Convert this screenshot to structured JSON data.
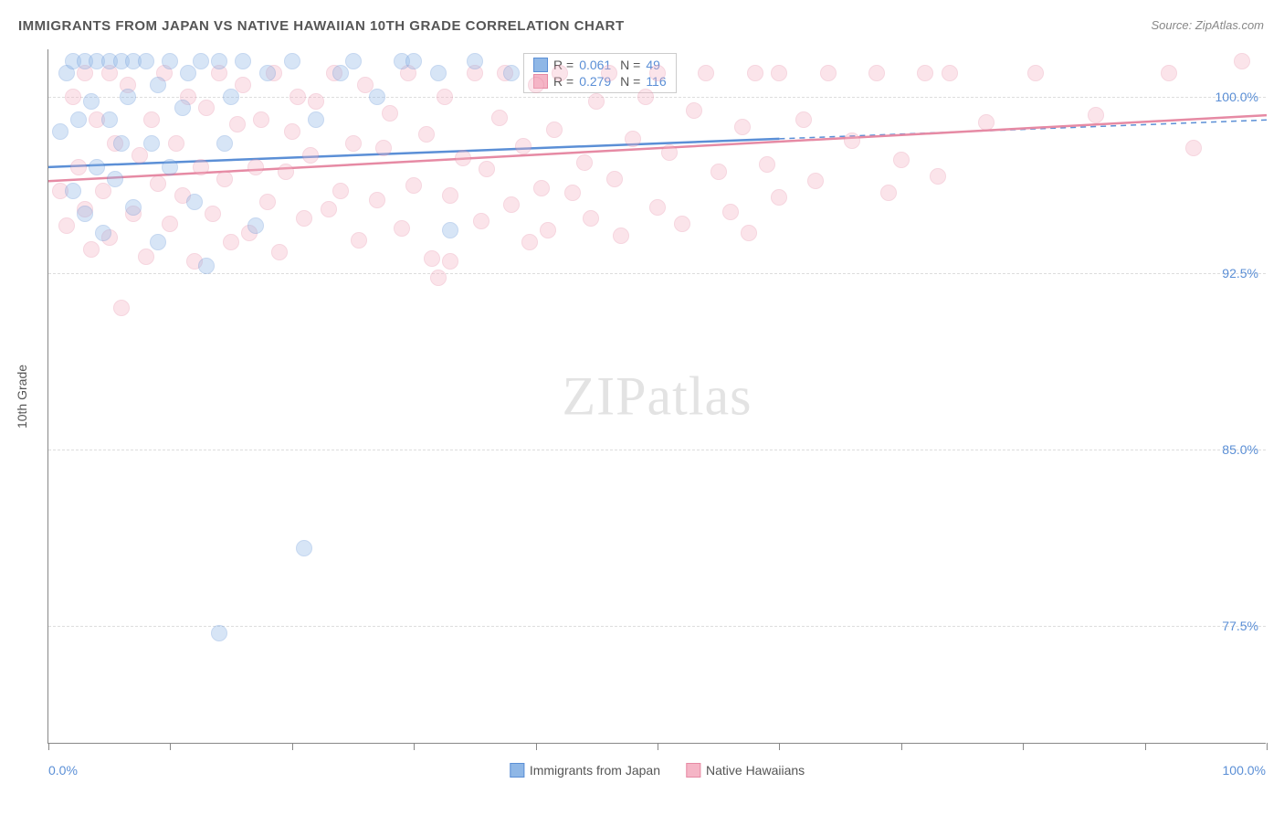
{
  "title": "IMMIGRANTS FROM JAPAN VS NATIVE HAWAIIAN 10TH GRADE CORRELATION CHART",
  "source": "Source: ZipAtlas.com",
  "ylabel": "10th Grade",
  "watermark_a": "ZIP",
  "watermark_b": "atlas",
  "chart": {
    "type": "scatter-with-trendlines",
    "background_color": "#ffffff",
    "grid_color": "#dddddd",
    "axis_color": "#888888",
    "tick_label_color": "#5b8fd6",
    "label_color": "#555555",
    "label_fontsize": 14,
    "title_fontsize": 15,
    "x": {
      "min": 0,
      "max": 100,
      "label_min": "0.0%",
      "label_max": "100.0%",
      "ticks": [
        0,
        10,
        20,
        30,
        40,
        50,
        60,
        70,
        80,
        90,
        100
      ]
    },
    "y": {
      "min": 72.5,
      "max": 102,
      "gridlines": [
        77.5,
        85.0,
        92.5,
        100.0
      ],
      "gridlabels": [
        "77.5%",
        "85.0%",
        "92.5%",
        "100.0%"
      ]
    },
    "marker_radius": 9,
    "marker_opacity": 0.35,
    "series": [
      {
        "name": "Immigrants from Japan",
        "fill": "#8fb7e6",
        "stroke": "#5b8fd6",
        "R": "0.061",
        "N": "49",
        "trend": {
          "y_at_x0": 97.0,
          "y_at_x100": 99.0,
          "solid_until_x": 60
        },
        "points": [
          [
            1,
            98.5
          ],
          [
            1.5,
            101
          ],
          [
            2,
            96
          ],
          [
            2,
            101.5
          ],
          [
            2.5,
            99
          ],
          [
            3,
            101.5
          ],
          [
            3,
            95
          ],
          [
            3.5,
            99.8
          ],
          [
            4,
            101.5
          ],
          [
            4,
            97
          ],
          [
            4.5,
            94.2
          ],
          [
            5,
            101.5
          ],
          [
            5,
            99
          ],
          [
            5.5,
            96.5
          ],
          [
            6,
            101.5
          ],
          [
            6,
            98
          ],
          [
            6.5,
            100
          ],
          [
            7,
            101.5
          ],
          [
            7,
            95.3
          ],
          [
            8,
            101.5
          ],
          [
            8.5,
            98
          ],
          [
            9,
            100.5
          ],
          [
            9,
            93.8
          ],
          [
            10,
            101.5
          ],
          [
            10,
            97
          ],
          [
            11,
            99.5
          ],
          [
            11.5,
            101
          ],
          [
            12,
            95.5
          ],
          [
            12.5,
            101.5
          ],
          [
            13,
            92.8
          ],
          [
            14,
            101.5
          ],
          [
            14.5,
            98
          ],
          [
            15,
            100
          ],
          [
            16,
            101.5
          ],
          [
            17,
            94.5
          ],
          [
            18,
            101
          ],
          [
            20,
            101.5
          ],
          [
            22,
            99
          ],
          [
            24,
            101
          ],
          [
            25,
            101.5
          ],
          [
            27,
            100
          ],
          [
            29,
            101.5
          ],
          [
            30,
            101.5
          ],
          [
            32,
            101
          ],
          [
            33,
            94.3
          ],
          [
            35,
            101.5
          ],
          [
            38,
            101
          ],
          [
            14,
            77.2
          ],
          [
            21,
            80.8
          ]
        ]
      },
      {
        "name": "Native Hawaiians",
        "fill": "#f5b5c6",
        "stroke": "#e68aa4",
        "R": "0.279",
        "N": "116",
        "trend": {
          "y_at_x0": 96.4,
          "y_at_x100": 99.2,
          "solid_until_x": 100
        },
        "points": [
          [
            1,
            96
          ],
          [
            1.5,
            94.5
          ],
          [
            2,
            100
          ],
          [
            2.5,
            97
          ],
          [
            3,
            95.2
          ],
          [
            3,
            101
          ],
          [
            3.5,
            93.5
          ],
          [
            4,
            99
          ],
          [
            4.5,
            96
          ],
          [
            5,
            101
          ],
          [
            5,
            94
          ],
          [
            5.5,
            98
          ],
          [
            6,
            91
          ],
          [
            6.5,
            100.5
          ],
          [
            7,
            95
          ],
          [
            7.5,
            97.5
          ],
          [
            8,
            93.2
          ],
          [
            8.5,
            99
          ],
          [
            9,
            96.3
          ],
          [
            9.5,
            101
          ],
          [
            10,
            94.6
          ],
          [
            10.5,
            98
          ],
          [
            11,
            95.8
          ],
          [
            11.5,
            100
          ],
          [
            12,
            93
          ],
          [
            12.5,
            97
          ],
          [
            13,
            99.5
          ],
          [
            13.5,
            95
          ],
          [
            14,
            101
          ],
          [
            14.5,
            96.5
          ],
          [
            15,
            93.8
          ],
          [
            15.5,
            98.8
          ],
          [
            16,
            100.5
          ],
          [
            16.5,
            94.2
          ],
          [
            17,
            97
          ],
          [
            17.5,
            99
          ],
          [
            18,
            95.5
          ],
          [
            18.5,
            101
          ],
          [
            19,
            93.4
          ],
          [
            19.5,
            96.8
          ],
          [
            20,
            98.5
          ],
          [
            20.5,
            100
          ],
          [
            21,
            94.8
          ],
          [
            21.5,
            97.5
          ],
          [
            22,
            99.8
          ],
          [
            23,
            95.2
          ],
          [
            23.5,
            101
          ],
          [
            24,
            96
          ],
          [
            25,
            98
          ],
          [
            25.5,
            93.9
          ],
          [
            26,
            100.5
          ],
          [
            27,
            95.6
          ],
          [
            27.5,
            97.8
          ],
          [
            28,
            99.3
          ],
          [
            29,
            94.4
          ],
          [
            29.5,
            101
          ],
          [
            30,
            96.2
          ],
          [
            31,
            98.4
          ],
          [
            31.5,
            93.1
          ],
          [
            32,
            92.3
          ],
          [
            32.5,
            100
          ],
          [
            33,
            95.8
          ],
          [
            33,
            93.0
          ],
          [
            34,
            97.4
          ],
          [
            35,
            101
          ],
          [
            35.5,
            94.7
          ],
          [
            36,
            96.9
          ],
          [
            37,
            99.1
          ],
          [
            37.5,
            101
          ],
          [
            38,
            95.4
          ],
          [
            39,
            97.9
          ],
          [
            39.5,
            93.8
          ],
          [
            40,
            100.5
          ],
          [
            40.5,
            96.1
          ],
          [
            41,
            94.3
          ],
          [
            41.5,
            98.6
          ],
          [
            42,
            101
          ],
          [
            43,
            95.9
          ],
          [
            44,
            97.2
          ],
          [
            44.5,
            94.8
          ],
          [
            45,
            99.8
          ],
          [
            46,
            101
          ],
          [
            46.5,
            96.5
          ],
          [
            47,
            94.1
          ],
          [
            48,
            98.2
          ],
          [
            49,
            100
          ],
          [
            50,
            95.3
          ],
          [
            50,
            101
          ],
          [
            51,
            97.6
          ],
          [
            52,
            94.6
          ],
          [
            53,
            99.4
          ],
          [
            54,
            101
          ],
          [
            55,
            96.8
          ],
          [
            56,
            95.1
          ],
          [
            57,
            98.7
          ],
          [
            57.5,
            94.2
          ],
          [
            58,
            101
          ],
          [
            59,
            97.1
          ],
          [
            60,
            95.7
          ],
          [
            60,
            101
          ],
          [
            62,
            99
          ],
          [
            63,
            96.4
          ],
          [
            64,
            101
          ],
          [
            66,
            98.1
          ],
          [
            68,
            101
          ],
          [
            69,
            95.9
          ],
          [
            70,
            97.3
          ],
          [
            72,
            101
          ],
          [
            73,
            96.6
          ],
          [
            74,
            101
          ],
          [
            77,
            98.9
          ],
          [
            81,
            101
          ],
          [
            86,
            99.2
          ],
          [
            92,
            101
          ],
          [
            94,
            97.8
          ],
          [
            98,
            101.5
          ]
        ]
      }
    ]
  }
}
